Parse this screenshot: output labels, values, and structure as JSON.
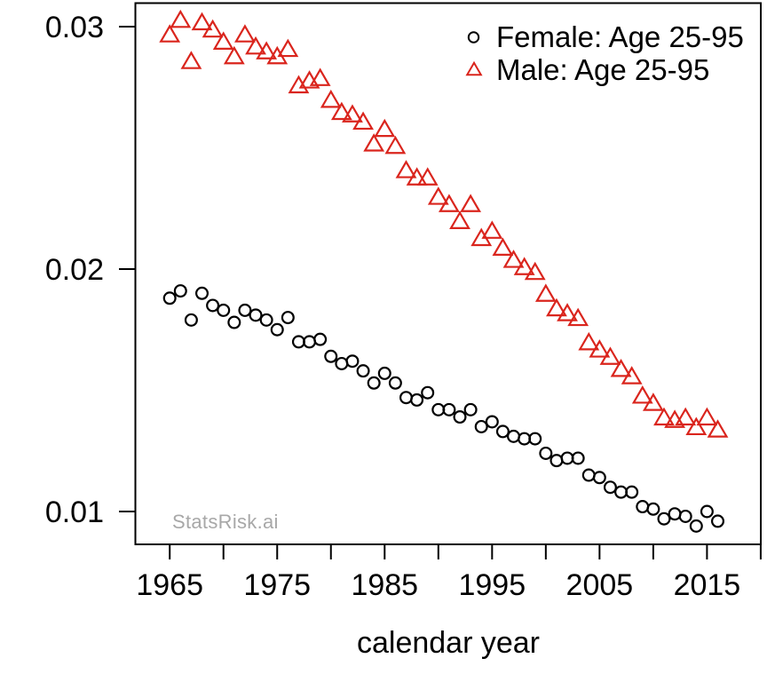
{
  "chart_data": {
    "type": "scatter",
    "title": "",
    "xlabel": "calendar year",
    "ylabel": "",
    "watermark": "StatsRisk.ai",
    "grid": false,
    "xlim": [
      1961.8,
      2020
    ],
    "ylim": [
      0.00865,
      0.031
    ],
    "years": [
      1965,
      1966,
      1967,
      1968,
      1969,
      1970,
      1971,
      1972,
      1973,
      1974,
      1975,
      1976,
      1977,
      1978,
      1979,
      1980,
      1981,
      1982,
      1983,
      1984,
      1985,
      1986,
      1987,
      1988,
      1989,
      1990,
      1991,
      1992,
      1993,
      1994,
      1995,
      1996,
      1997,
      1998,
      1999,
      2000,
      2001,
      2002,
      2003,
      2004,
      2005,
      2006,
      2007,
      2008,
      2009,
      2010,
      2011,
      2012,
      2013,
      2014,
      2015,
      2016
    ],
    "series": [
      {
        "name": "Female: Age 25-95",
        "marker": "circle",
        "color": "#000000",
        "values": [
          0.0188,
          0.0191,
          0.0179,
          0.019,
          0.0185,
          0.0183,
          0.0178,
          0.0183,
          0.0181,
          0.0179,
          0.0175,
          0.018,
          0.017,
          0.017,
          0.0171,
          0.0164,
          0.0161,
          0.0162,
          0.0158,
          0.0153,
          0.0157,
          0.0153,
          0.0147,
          0.0146,
          0.0149,
          0.0142,
          0.0142,
          0.0139,
          0.0142,
          0.0135,
          0.0137,
          0.0133,
          0.0131,
          0.013,
          0.013,
          0.0124,
          0.0121,
          0.0122,
          0.0122,
          0.0115,
          0.0114,
          0.011,
          0.0108,
          0.0108,
          0.0102,
          0.0101,
          0.0097,
          0.0099,
          0.0098,
          0.0094,
          0.01,
          0.0096
        ]
      },
      {
        "name": "Male: Age 25-95",
        "marker": "triangle-up",
        "color": "#da251d",
        "values": [
          0.0296,
          0.0302,
          0.0285,
          0.0301,
          0.0298,
          0.0293,
          0.0287,
          0.0296,
          0.0291,
          0.0289,
          0.0287,
          0.029,
          0.0275,
          0.0277,
          0.0278,
          0.0269,
          0.0264,
          0.0263,
          0.026,
          0.0251,
          0.0257,
          0.025,
          0.024,
          0.0237,
          0.0237,
          0.0229,
          0.0226,
          0.0219,
          0.0226,
          0.0212,
          0.0215,
          0.0208,
          0.0203,
          0.02,
          0.0198,
          0.0189,
          0.0183,
          0.0181,
          0.0179,
          0.0169,
          0.0166,
          0.0163,
          0.0158,
          0.0155,
          0.0147,
          0.0144,
          0.0138,
          0.0137,
          0.0138,
          0.0134,
          0.0138,
          0.0133
        ]
      }
    ],
    "xaxis": {
      "tick_years": [
        1965,
        1970,
        1975,
        1980,
        1985,
        1990,
        1995,
        2000,
        2005,
        2010,
        2015,
        2020
      ],
      "labeled_tick_years": [
        1965,
        1975,
        1985,
        1995,
        2005,
        2015
      ],
      "tick_labels": [
        "1965",
        "1975",
        "1985",
        "1995",
        "2005",
        "2015"
      ]
    },
    "yaxis": {
      "tick_values": [
        0.01,
        0.02,
        0.03
      ],
      "tick_labels": [
        "0.01",
        "0.02",
        "0.03"
      ]
    },
    "legend": {
      "position": "top-right",
      "items": [
        {
          "label": "Female: Age 25-95",
          "symbol": "circle",
          "color": "#000000"
        },
        {
          "label": "Male: Age 25-95",
          "symbol": "triangle-up",
          "color": "#da251d"
        }
      ]
    }
  }
}
